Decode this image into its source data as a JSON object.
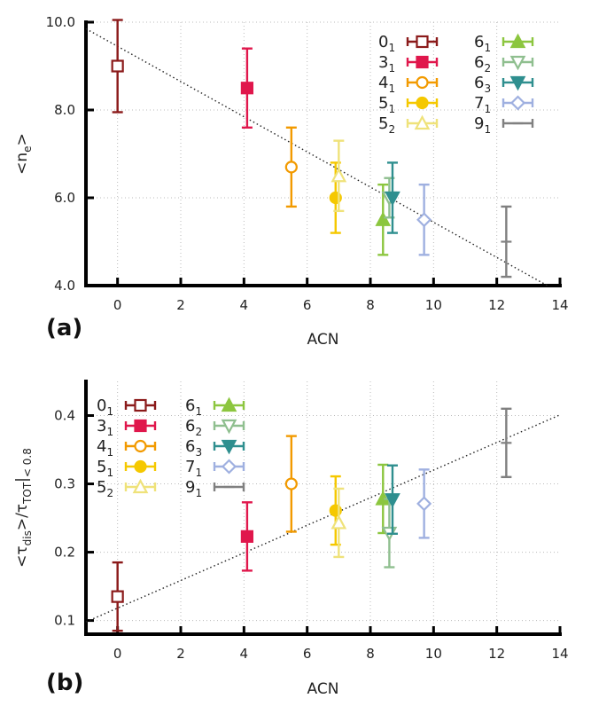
{
  "chart_data": [
    {
      "panel_label": "(a)",
      "type": "scatter",
      "xlabel": "ACN",
      "ylabel": "<n_e>",
      "xlim": [
        -1,
        14
      ],
      "ylim": [
        4,
        10
      ],
      "xticks": [
        0,
        2,
        4,
        6,
        8,
        10,
        12,
        14
      ],
      "yticks": [
        4,
        6,
        8,
        10
      ],
      "ytick_labels": [
        "4.0",
        "6.0",
        "8.0",
        "10.0"
      ],
      "grid": "dotted",
      "legend_placement": "top-right",
      "fit_line": {
        "x": [
          -1,
          13.6
        ],
        "y": [
          9.85,
          4.0
        ]
      },
      "series": [
        {
          "name": "0",
          "sub": "1",
          "x": 0.0,
          "y": 9.0,
          "err": 1.05,
          "color": "#8b1a1a",
          "marker": "square-open"
        },
        {
          "name": "3",
          "sub": "1",
          "x": 4.1,
          "y": 8.5,
          "err": 0.9,
          "color": "#e0174c",
          "marker": "square"
        },
        {
          "name": "4",
          "sub": "1",
          "x": 5.5,
          "y": 6.7,
          "err": 0.9,
          "color": "#f29a00",
          "marker": "circle-open"
        },
        {
          "name": "5",
          "sub": "1",
          "x": 6.9,
          "y": 6.0,
          "err": 0.8,
          "color": "#f5c800",
          "marker": "circle"
        },
        {
          "name": "5",
          "sub": "2",
          "x": 7.0,
          "y": 6.5,
          "err": 0.8,
          "color": "#efe27a",
          "marker": "triangle-open"
        },
        {
          "name": "6",
          "sub": "1",
          "x": 8.4,
          "y": 5.5,
          "err": 0.8,
          "color": "#8cc63f",
          "marker": "triangle"
        },
        {
          "name": "6",
          "sub": "2",
          "x": 8.6,
          "y": 6.0,
          "err": 0.45,
          "color": "#8fbf8f",
          "marker": "triangle-down-open"
        },
        {
          "name": "6",
          "sub": "3",
          "x": 8.7,
          "y": 6.0,
          "err": 0.8,
          "color": "#2f8f8f",
          "marker": "triangle-down"
        },
        {
          "name": "7",
          "sub": "1",
          "x": 9.7,
          "y": 5.5,
          "err": 0.8,
          "color": "#9fb0e0",
          "marker": "diamond-open"
        },
        {
          "name": "9",
          "sub": "1",
          "x": 12.3,
          "y": 5.0,
          "err": 0.8,
          "color": "#808080",
          "marker": "plus"
        }
      ]
    },
    {
      "panel_label": "(b)",
      "type": "scatter",
      "xlabel": "ACN",
      "ylabel_main": "<τ",
      "ylabel_sub1": "dis",
      "ylabel_mid": ">/τ",
      "ylabel_sub2": "TOT",
      "ylabel_tail": "|",
      "ylabel_sub3": "< 0.8",
      "xlim": [
        -1,
        14
      ],
      "ylim": [
        0.08,
        0.45
      ],
      "xticks": [
        0,
        2,
        4,
        6,
        8,
        10,
        12,
        14
      ],
      "yticks": [
        0.1,
        0.2,
        0.3,
        0.4
      ],
      "ytick_labels": [
        "0.1",
        "0.2",
        "0.3",
        "0.4"
      ],
      "grid": "dotted",
      "legend_placement": "top-left",
      "fit_line": {
        "x": [
          -1,
          14
        ],
        "y": [
          0.098,
          0.401
        ]
      },
      "series": [
        {
          "name": "0",
          "sub": "1",
          "x": 0.0,
          "y": 0.135,
          "err": 0.05,
          "color": "#8b1a1a",
          "marker": "square-open"
        },
        {
          "name": "3",
          "sub": "1",
          "x": 4.1,
          "y": 0.223,
          "err": 0.05,
          "color": "#e0174c",
          "marker": "square"
        },
        {
          "name": "4",
          "sub": "1",
          "x": 5.5,
          "y": 0.3,
          "err": 0.07,
          "color": "#f29a00",
          "marker": "circle-open"
        },
        {
          "name": "5",
          "sub": "1",
          "x": 6.9,
          "y": 0.261,
          "err": 0.05,
          "color": "#f5c800",
          "marker": "circle"
        },
        {
          "name": "5",
          "sub": "2",
          "x": 7.0,
          "y": 0.243,
          "err": 0.05,
          "color": "#efe27a",
          "marker": "triangle-open"
        },
        {
          "name": "6",
          "sub": "1",
          "x": 8.4,
          "y": 0.278,
          "err": 0.05,
          "color": "#8cc63f",
          "marker": "triangle"
        },
        {
          "name": "6",
          "sub": "2",
          "x": 8.6,
          "y": 0.228,
          "err": 0.05,
          "color": "#8fbf8f",
          "marker": "triangle-down-open"
        },
        {
          "name": "6",
          "sub": "3",
          "x": 8.7,
          "y": 0.277,
          "err": 0.05,
          "color": "#2f8f8f",
          "marker": "triangle-down"
        },
        {
          "name": "7",
          "sub": "1",
          "x": 9.7,
          "y": 0.271,
          "err": 0.05,
          "color": "#9fb0e0",
          "marker": "diamond-open"
        },
        {
          "name": "9",
          "sub": "1",
          "x": 12.3,
          "y": 0.36,
          "err": 0.05,
          "color": "#808080",
          "marker": "plus"
        }
      ]
    }
  ]
}
